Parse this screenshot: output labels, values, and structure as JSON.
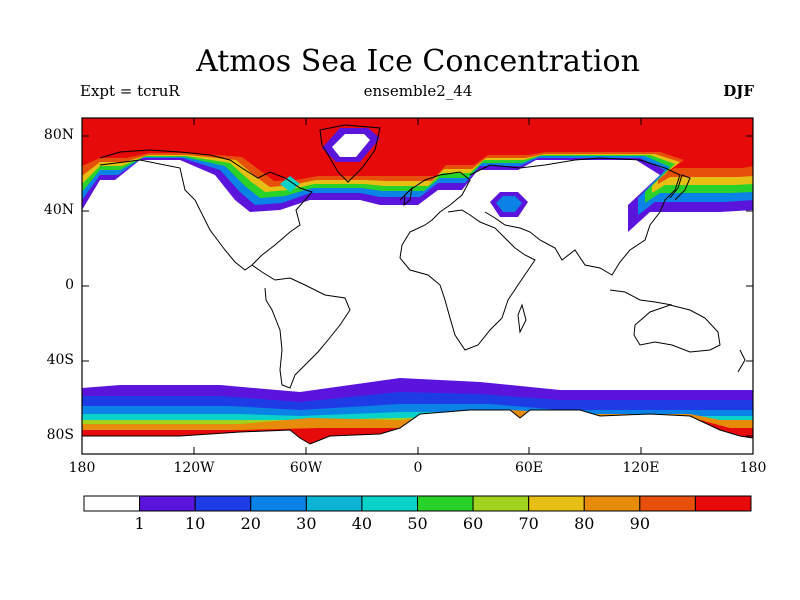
{
  "title": "Atmos Sea Ice Concentration",
  "expt": "Expt = tcruR",
  "ensemble": "ensemble2_44",
  "season": "DJF",
  "axes": {
    "lon_ticks": [
      "180",
      "120W",
      "60W",
      "0",
      "60E",
      "120E",
      "180"
    ],
    "lat_ticks": [
      "80N",
      "40N",
      "0",
      "40S",
      "80S"
    ]
  },
  "colorbar": {
    "labels": [
      "1",
      "10",
      "20",
      "30",
      "40",
      "50",
      "60",
      "70",
      "80",
      "90"
    ],
    "colors": [
      "#ffffff",
      "#5a14dc",
      "#1e3ce6",
      "#0a82e6",
      "#0ab4d2",
      "#0ad2c8",
      "#28d228",
      "#a0d21e",
      "#e6be14",
      "#e68c0a",
      "#e6500a",
      "#e60a0a"
    ]
  },
  "colors": {
    "ice_high": "#e60a0a",
    "ice_edge": "#5a14dc"
  }
}
